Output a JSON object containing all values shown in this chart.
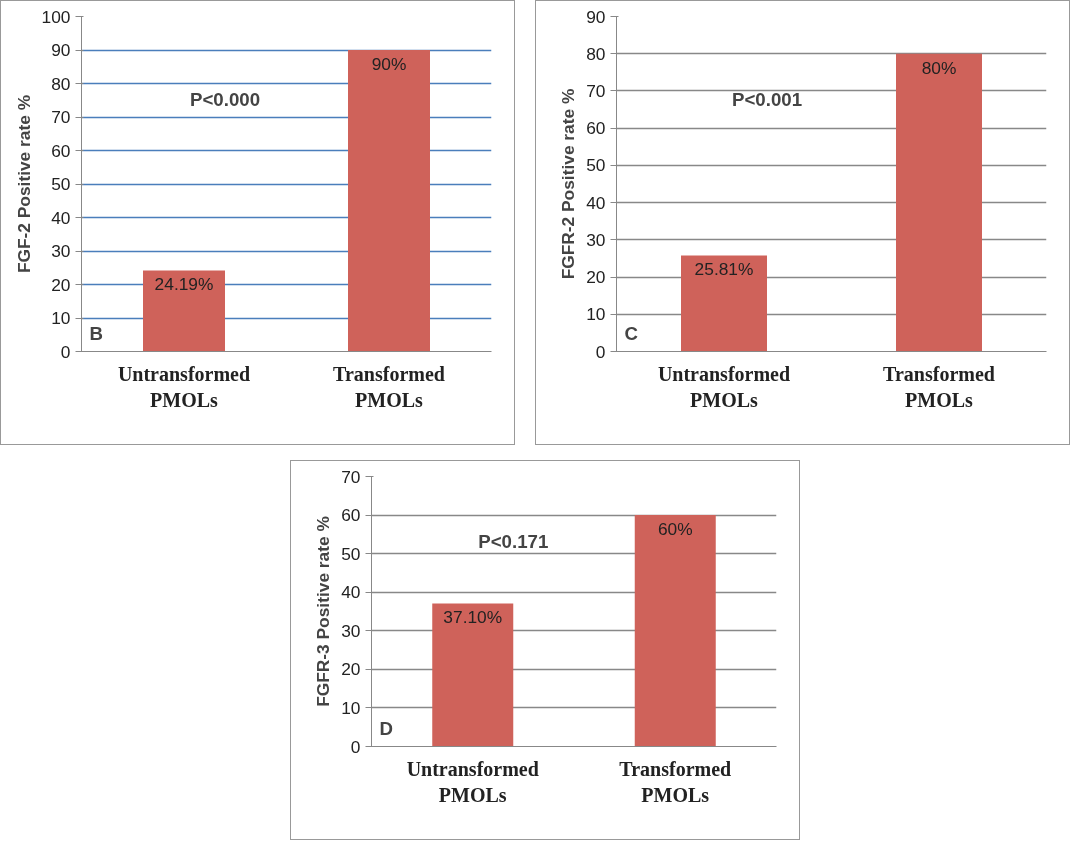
{
  "chart_data": [
    {
      "type": "bar",
      "ylabel": "FGF-2 Positive rate %",
      "categories": [
        "Untransformed\nPMOLs",
        "Transformed\nPMOLs"
      ],
      "values": [
        24.19,
        90
      ],
      "value_labels": [
        "24.19%",
        "90%"
      ],
      "color": "#cf625a",
      "ylim": [
        0,
        100
      ],
      "yticks": [
        0,
        10,
        20,
        30,
        40,
        50,
        60,
        70,
        80,
        90,
        100
      ],
      "grid": "y",
      "annotations": [
        "P<0.000",
        "B"
      ]
    },
    {
      "type": "bar",
      "ylabel": "FGFR-2 Positive rate %",
      "categories": [
        "Untransformed\nPMOLs",
        "Transformed\nPMOLs"
      ],
      "values": [
        25.81,
        80
      ],
      "value_labels": [
        "25.81%",
        "80%"
      ],
      "color": "#cf625a",
      "ylim": [
        0,
        90
      ],
      "yticks": [
        0,
        10,
        20,
        30,
        40,
        50,
        60,
        70,
        80,
        90
      ],
      "grid": "y",
      "annotations": [
        "P<0.001",
        "C"
      ]
    },
    {
      "type": "bar",
      "ylabel": "FGFR-3 Positive rate %",
      "categories": [
        "Untransformed\nPMOLs",
        "Transformed\nPMOLs"
      ],
      "values": [
        37.1,
        60
      ],
      "value_labels": [
        "37.10%",
        "60%"
      ],
      "color": "#cf625a",
      "ylim": [
        0,
        70
      ],
      "yticks": [
        0,
        10,
        20,
        30,
        40,
        50,
        60,
        70
      ],
      "grid": "y",
      "annotations": [
        "P<0.171",
        "D"
      ]
    }
  ]
}
